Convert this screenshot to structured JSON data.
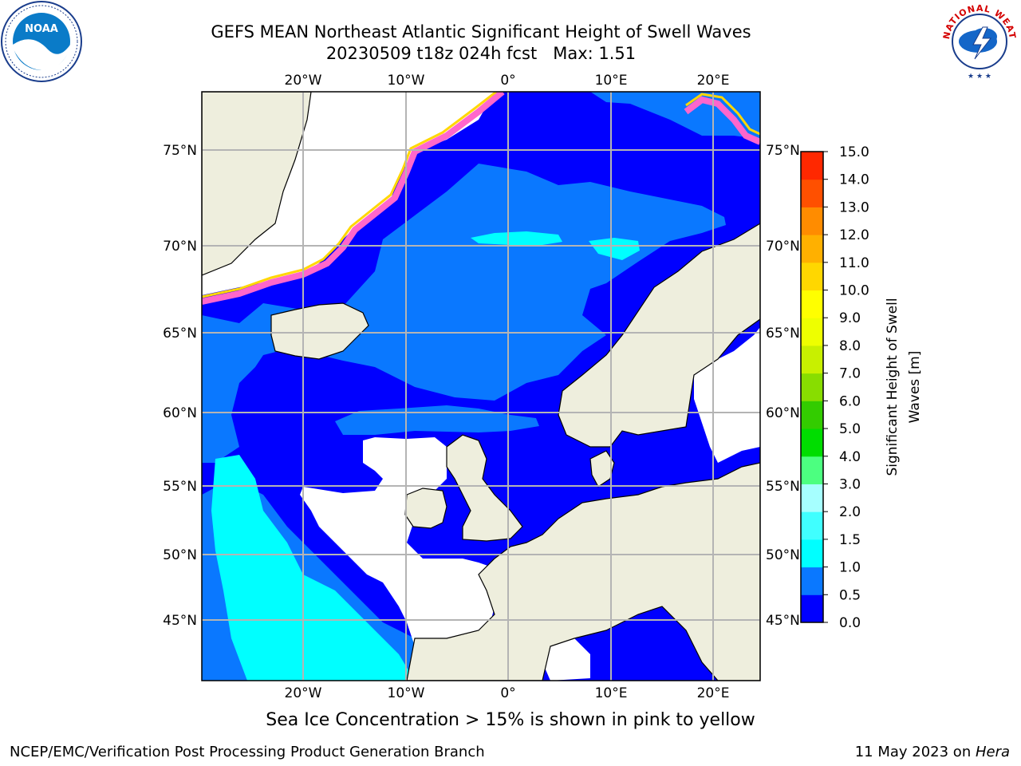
{
  "title": {
    "line1": "GEFS MEAN Northeast Atlantic Significant Height of Swell Waves",
    "line2": "20230509 t18z 024h fcst   Max: 1.51"
  },
  "logos": {
    "left": "NOAA",
    "right_text": "NATIONAL WEATHER SERVICE"
  },
  "map": {
    "longitude_labels": [
      "20°W",
      "10°W",
      "0°",
      "10°E",
      "20°E"
    ],
    "latitude_labels_left": [
      "75°N",
      "70°N",
      "65°N",
      "60°N",
      "55°N",
      "50°N",
      "45°N"
    ],
    "latitude_labels_right": [
      "75°N",
      "70°N",
      "65°N",
      "60°N",
      "55°N",
      "50°N",
      "45°N"
    ],
    "colors": {
      "land": "#eeeedd",
      "missing": "#ffffff",
      "grid": "#b4b4b4",
      "coast": "#000000"
    }
  },
  "colorbar": {
    "label_line1": "Significant Height of Swell",
    "label_line2": "Waves [m]",
    "ticks": [
      "0.0",
      "0.5",
      "1.0",
      "1.5",
      "2.0",
      "3.0",
      "4.0",
      "5.0",
      "6.0",
      "7.0",
      "8.0",
      "9.0",
      "10.0",
      "11.0",
      "12.0",
      "13.0",
      "14.0",
      "15.0"
    ],
    "colors": [
      "#0000ff",
      "#0a78ff",
      "#00ffff",
      "#40ffff",
      "#a6ffff",
      "#4cff80",
      "#00dd00",
      "#33cc00",
      "#88dd00",
      "#c8f000",
      "#eeff00",
      "#ffff00",
      "#ffd700",
      "#ffb000",
      "#ff8c00",
      "#ff5000",
      "#ff2800",
      "#ff0000"
    ]
  },
  "caption": "Sea Ice Concentration > 15% is shown in pink to yellow",
  "footer": {
    "left": "NCEP/EMC/Verification Post Processing Product Generation Branch",
    "right_prefix": "11 May 2023 on ",
    "right_italic": "Hera"
  }
}
